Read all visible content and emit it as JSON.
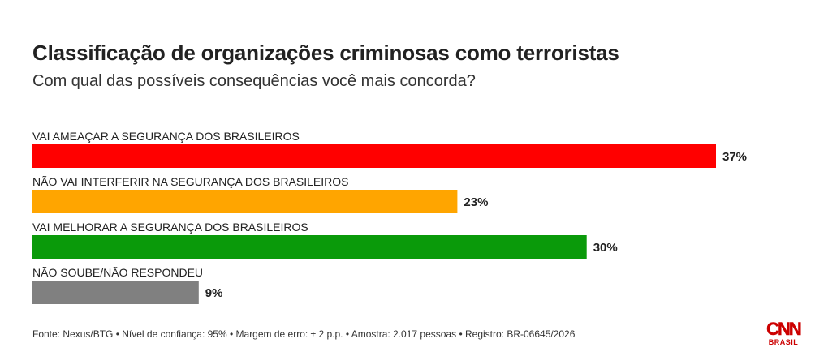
{
  "header": {
    "title": "Classificação de organizações criminosas como terroristas",
    "subtitle": "Com qual das possíveis consequências você mais concorda?"
  },
  "chart_data": {
    "type": "bar",
    "orientation": "horizontal",
    "title": "Classificação de organizações criminosas como terroristas",
    "subtitle": "Com qual das possíveis consequências você mais concorda?",
    "categories": [
      "VAI AMEAÇAR A SEGURANÇA DOS BRASILEIROS",
      "NÃO VAI INTERFERIR NA SEGURANÇA DOS BRASILEIROS",
      "VAI MELHORAR A SEGURANÇA DOS BRASILEIROS",
      "NÃO SOUBE/NÃO RESPONDEU"
    ],
    "values": [
      37,
      23,
      30,
      9
    ],
    "value_labels": [
      "37%",
      "23%",
      "30%",
      "9%"
    ],
    "colors": [
      "#ff0000",
      "#ffa500",
      "#0a9a0a",
      "#808080"
    ],
    "xlim": [
      0,
      37
    ],
    "grid": false,
    "legend": "none"
  },
  "footer": {
    "source": "Fonte: Nexus/BTG • Nível de confiança: 95% • Margem de erro: ± 2 p.p. • Amostra: 2.017 pessoas • Registro: BR-06645/2026",
    "logo_text": "CNN",
    "logo_sub": "BRASIL",
    "logo_color": "#cc0000"
  }
}
